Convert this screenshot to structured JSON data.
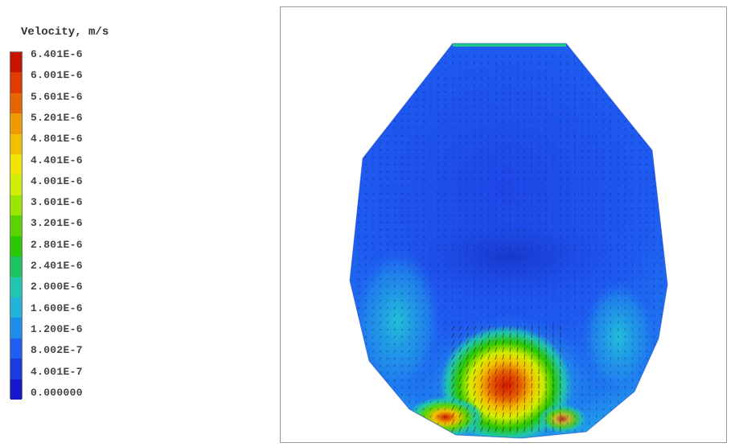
{
  "chart_data": {
    "type": "heatmap",
    "title": "Velocity, m/s",
    "colorbar": {
      "title": "Velocity, m/s",
      "labels": [
        "6.401E-6",
        "6.001E-6",
        "5.601E-6",
        "5.201E-6",
        "4.801E-6",
        "4.401E-6",
        "4.001E-6",
        "3.601E-6",
        "3.201E-6",
        "2.801E-6",
        "2.401E-6",
        "2.000E-6",
        "1.600E-6",
        "1.200E-6",
        "8.002E-7",
        "4.001E-7",
        "0.000000"
      ],
      "values": [
        6.401e-06,
        6.001e-06,
        5.601e-06,
        5.201e-06,
        4.801e-06,
        4.401e-06,
        4.001e-06,
        3.601e-06,
        3.201e-06,
        2.801e-06,
        2.401e-06,
        2e-06,
        1.6e-06,
        1.2e-06,
        8.002e-07,
        4.001e-07,
        0
      ],
      "colors": [
        "#c81400",
        "#e03c00",
        "#e86400",
        "#ee9a00",
        "#f2c000",
        "#f0e400",
        "#d2ee00",
        "#9ae600",
        "#5ad400",
        "#2ac800",
        "#1ec464",
        "#20c6b0",
        "#22b2dc",
        "#1e8cec",
        "#1e5ef0",
        "#1c3ae0",
        "#1418c8"
      ]
    },
    "field": {
      "dominant_level": "8.002E-7",
      "max_region": "bottom center",
      "vectors": "velocity arrows overlaid"
    }
  }
}
